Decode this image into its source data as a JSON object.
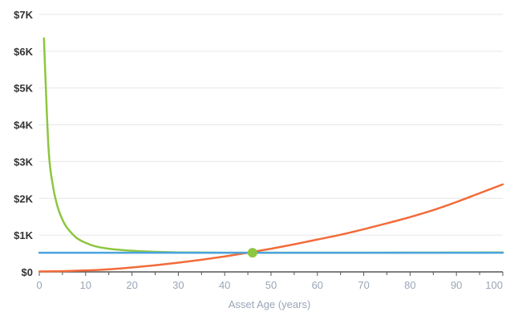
{
  "chart_data": {
    "type": "line",
    "title": "",
    "xlabel": "Asset Age (years)",
    "ylabel": "",
    "xlim": [
      0,
      100
    ],
    "ylim": [
      0,
      7000
    ],
    "grid": "horizontal",
    "x_tick_labels": [
      "0",
      "10",
      "20",
      "30",
      "40",
      "50",
      "60",
      "70",
      "80",
      "90",
      "100"
    ],
    "y_tick_labels": [
      "$0",
      "$1K",
      "$2K",
      "$3K",
      "$4K",
      "$5K",
      "$6K",
      "$7K"
    ],
    "x_tick_values": [
      0,
      10,
      20,
      30,
      40,
      50,
      60,
      70,
      80,
      90,
      100
    ],
    "y_tick_values": [
      0,
      1000,
      2000,
      3000,
      4000,
      5000,
      6000,
      7000
    ],
    "series": [
      {
        "color": "#8dc63f",
        "points": [
          [
            1,
            6350
          ],
          [
            2,
            3350
          ],
          [
            3,
            2300
          ],
          [
            4,
            1750
          ],
          [
            5,
            1420
          ],
          [
            6,
            1200
          ],
          [
            8,
            930
          ],
          [
            10,
            790
          ],
          [
            12,
            700
          ],
          [
            15,
            630
          ],
          [
            20,
            575
          ],
          [
            25,
            545
          ],
          [
            30,
            530
          ],
          [
            40,
            522
          ],
          [
            50,
            520
          ],
          [
            60,
            520
          ],
          [
            70,
            521
          ],
          [
            80,
            523
          ],
          [
            90,
            526
          ],
          [
            100,
            530
          ]
        ]
      },
      {
        "color": "#f26b3a",
        "points": [
          [
            0,
            10
          ],
          [
            5,
            20
          ],
          [
            10,
            40
          ],
          [
            15,
            70
          ],
          [
            20,
            120
          ],
          [
            25,
            180
          ],
          [
            30,
            250
          ],
          [
            35,
            330
          ],
          [
            40,
            420
          ],
          [
            45,
            520
          ],
          [
            50,
            630
          ],
          [
            55,
            750
          ],
          [
            60,
            880
          ],
          [
            65,
            1010
          ],
          [
            70,
            1160
          ],
          [
            75,
            1320
          ],
          [
            80,
            1490
          ],
          [
            85,
            1680
          ],
          [
            90,
            1900
          ],
          [
            95,
            2140
          ],
          [
            100,
            2380
          ]
        ]
      },
      {
        "color": "#4aa3df",
        "points": [
          [
            0,
            520
          ],
          [
            100,
            520
          ]
        ]
      }
    ],
    "marker": {
      "x": 46,
      "y": 520,
      "color": "#8dc63f"
    }
  }
}
